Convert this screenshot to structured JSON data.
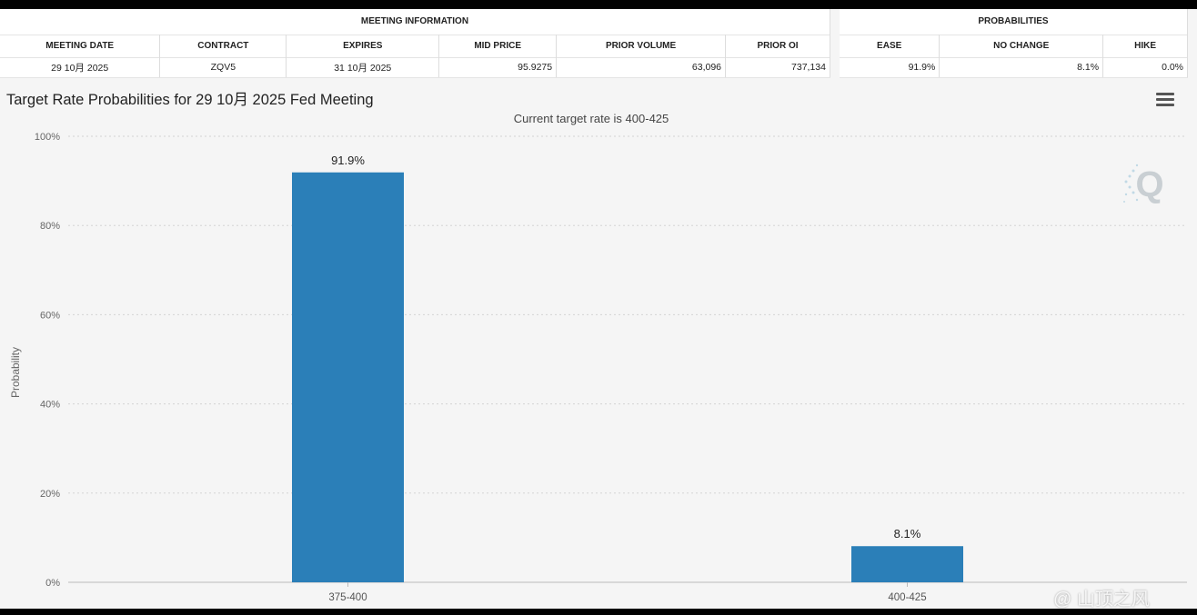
{
  "meeting_table": {
    "group_header": "MEETING INFORMATION",
    "columns": [
      "MEETING DATE",
      "CONTRACT",
      "EXPIRES",
      "MID PRICE",
      "PRIOR VOLUME",
      "PRIOR OI"
    ],
    "row": [
      "29 10月 2025",
      "ZQV5",
      "31 10月 2025",
      "95.9275",
      "63,096",
      "737,134"
    ]
  },
  "prob_table": {
    "group_header": "PROBABILITIES",
    "columns": [
      "EASE",
      "NO CHANGE",
      "HIKE"
    ],
    "row": [
      "91.9%",
      "8.1%",
      "0.0%"
    ]
  },
  "chart_data": {
    "type": "bar",
    "title": "Target Rate Probabilities for 29 10月 2025 Fed Meeting",
    "subtitle": "Current target rate is 400-425",
    "xlabel": "",
    "ylabel": "Probability",
    "categories": [
      "375-400",
      "400-425"
    ],
    "values": [
      91.9,
      8.1
    ],
    "data_labels": [
      "91.9%",
      "8.1%"
    ],
    "ylim": [
      0,
      100
    ],
    "yticks": [
      "0%",
      "20%",
      "40%",
      "60%",
      "80%",
      "100%"
    ],
    "ytick_values": [
      0,
      20,
      40,
      60,
      80,
      100
    ],
    "grid": true,
    "bar_color": "#2b7fb8"
  },
  "icons": {
    "menu": "hamburger-menu-icon",
    "watermark": "q-logo-icon"
  },
  "footer_watermark": "@ 山顶之风"
}
